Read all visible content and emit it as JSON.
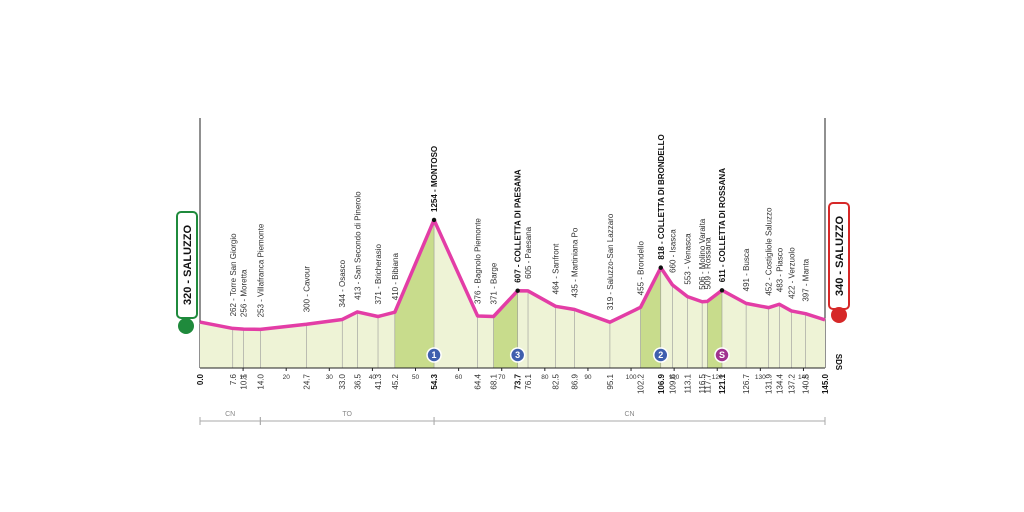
{
  "chart_data": {
    "type": "area",
    "start_label": "320 - SALUZZO",
    "finish_label": "340 - SALUZZO",
    "logo": "SDS",
    "x": [
      0,
      7.6,
      10.1,
      14.0,
      24.7,
      33.0,
      36.5,
      41.3,
      45.2,
      54.3,
      64.4,
      68.1,
      73.7,
      76.1,
      82.5,
      86.9,
      95.1,
      102.2,
      106.9,
      109.6,
      113.1,
      116.5,
      117.7,
      121.1,
      126.7,
      131.9,
      134.4,
      137.2,
      140.5,
      145
    ],
    "x_labels": [
      "0.0",
      "7.6",
      "10.1",
      "14.0",
      "24.7",
      "33.0",
      "36.5",
      "41.3",
      "45.2",
      "54.3",
      "64.4",
      "68.1",
      "73.7",
      "76.1",
      "82.5",
      "86.9",
      "95.1",
      "102.2",
      "106.9",
      "109.6",
      "113.1",
      "116.5",
      "117.7",
      "121.1",
      "126.7",
      "131.9",
      "134.4",
      "137.2",
      "140.5",
      "145.0"
    ],
    "values": [
      320,
      262,
      256,
      253,
      300,
      344,
      413,
      371,
      410,
      1254,
      376,
      371,
      607,
      605,
      464,
      435,
      319,
      455,
      818,
      660,
      553,
      506,
      509,
      611,
      491,
      452,
      483,
      422,
      397,
      340
    ],
    "value_labels": [
      null,
      "262 - Torre San Giorgio",
      "256 - Moretta",
      "253 - Villafranca Piemonte",
      "300 - Cavour",
      "344 - Osasco",
      "413 - San Secondo di Pinerolo",
      "371 - Bricherasio",
      "410 - Bibiana",
      "1254 - MONTOSO",
      "376 - Bagnolo Piemonte",
      "371 - Barge",
      "607 - COLLETTA DI PAESANA",
      "605 - Paesana",
      "464 - Sanfront",
      "435 - Martiniana Po",
      "319 - Saluzzo-San Lazzaro",
      "455 - Brondello",
      "818 - COLLETTA DI BRONDELLO",
      "660 - Isasca",
      "553 - Venasca",
      "506 - Molino Varaita",
      "509 - Rossana",
      "611 - COLLETTA DI ROSSANA",
      "491 - Busca",
      "452 - Costigliole Saluzzo",
      "483 - Piasco",
      "422 - Verzuolo",
      "397 - Manta",
      null
    ],
    "color": "#e33da6",
    "fill": "#eef3d6",
    "climb_fill": "#c8dc8c",
    "climbs": [
      {
        "at": 9,
        "label": "1",
        "color": "#3f5fae"
      },
      {
        "at": 12,
        "label": "3",
        "color": "#3f5fae"
      },
      {
        "at": 18,
        "label": "2",
        "color": "#3f5fae"
      },
      {
        "at": 23,
        "label": "S",
        "color": "#a0328f"
      }
    ],
    "xlim": [
      0,
      145
    ],
    "ylim": [
      -100,
      1400
    ],
    "xticks": [
      10,
      20,
      30,
      40,
      50,
      60,
      70,
      80,
      90,
      100,
      110,
      120,
      130,
      140
    ],
    "regions": [
      {
        "label": "CN",
        "from": 0,
        "to": 14.0
      },
      {
        "label": "TO",
        "from": 14.0,
        "to": 54.3
      },
      {
        "label": "CN",
        "from": 54.3,
        "to": 145
      }
    ]
  }
}
